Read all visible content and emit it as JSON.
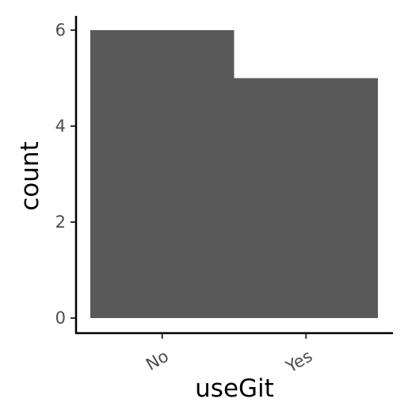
{
  "chart_data": {
    "type": "bar",
    "categories": [
      "No",
      "Yes"
    ],
    "values": [
      6,
      5
    ],
    "xlabel": "useGit",
    "ylabel": "count",
    "ylim": [
      0,
      6.3
    ],
    "y_ticks": [
      0,
      2,
      4,
      6
    ],
    "bar_color": "#595959",
    "grid": false,
    "x_tick_label_rotation_deg": 30
  }
}
